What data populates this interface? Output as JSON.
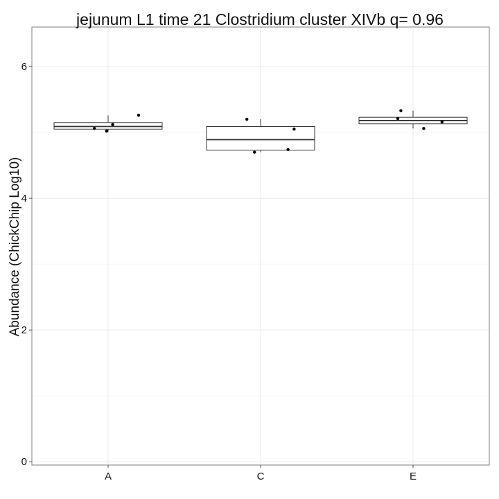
{
  "chart_data": {
    "type": "box",
    "title": "jejunum L1 time 21 Clostridium cluster XIVb q= 0.96",
    "xlabel": "",
    "ylabel": "Abundance (ChickChip Log10)",
    "categories": [
      "A",
      "C",
      "E"
    ],
    "ylim": [
      -0.05,
      6.6
    ],
    "yticks": [
      0,
      2,
      4,
      6
    ],
    "grid": true,
    "boxes": [
      {
        "category": "A",
        "lower_whisker": 5.01,
        "q1": 5.05,
        "median": 5.09,
        "q3": 5.15,
        "upper_whisker": 5.26
      },
      {
        "category": "C",
        "lower_whisker": 4.7,
        "q1": 4.73,
        "median": 4.89,
        "q3": 5.09,
        "upper_whisker": 5.2
      },
      {
        "category": "E",
        "lower_whisker": 5.06,
        "q1": 5.13,
        "median": 5.18,
        "q3": 5.23,
        "upper_whisker": 5.33
      }
    ],
    "points": [
      {
        "category": "A",
        "jitter": -0.09,
        "y": 5.06
      },
      {
        "category": "A",
        "jitter": -0.01,
        "y": 5.02
      },
      {
        "category": "A",
        "jitter": 0.03,
        "y": 5.12
      },
      {
        "category": "A",
        "jitter": 0.2,
        "y": 5.26
      },
      {
        "category": "C",
        "jitter": -0.09,
        "y": 5.2
      },
      {
        "category": "C",
        "jitter": -0.04,
        "y": 4.7
      },
      {
        "category": "C",
        "jitter": 0.18,
        "y": 4.74
      },
      {
        "category": "C",
        "jitter": 0.22,
        "y": 5.05
      },
      {
        "category": "E",
        "jitter": -0.1,
        "y": 5.21
      },
      {
        "category": "E",
        "jitter": -0.08,
        "y": 5.33
      },
      {
        "category": "E",
        "jitter": 0.07,
        "y": 5.06
      },
      {
        "category": "E",
        "jitter": 0.19,
        "y": 5.16
      }
    ]
  }
}
